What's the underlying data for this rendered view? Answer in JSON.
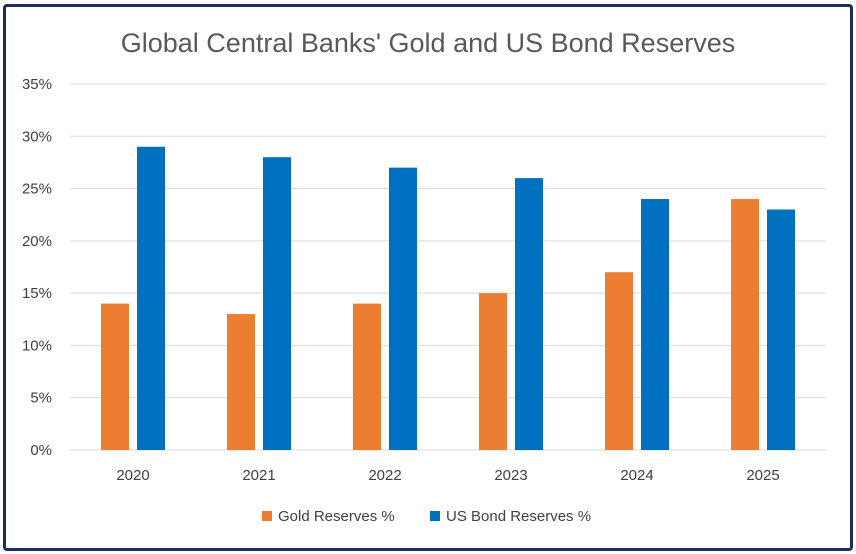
{
  "chart_data": {
    "type": "bar",
    "title": "Global Central Banks' Gold and US Bond Reserves",
    "categories": [
      "2020",
      "2021",
      "2022",
      "2023",
      "2024",
      "2025"
    ],
    "series": [
      {
        "name": "Gold Reserves %",
        "values": [
          14,
          13,
          14,
          15,
          17,
          24
        ],
        "color": "#ed7d31"
      },
      {
        "name": "US Bond Reserves %",
        "values": [
          29,
          28,
          27,
          26,
          24,
          23
        ],
        "color": "#0070c0"
      }
    ],
    "yticks": [
      "0%",
      "5%",
      "10%",
      "15%",
      "20%",
      "25%",
      "30%",
      "35%"
    ],
    "ylim": [
      0,
      35
    ],
    "grid": true,
    "legend_position": "bottom",
    "gridline_color": "#d9d9d9",
    "frame_color": "#1f2d5a"
  }
}
